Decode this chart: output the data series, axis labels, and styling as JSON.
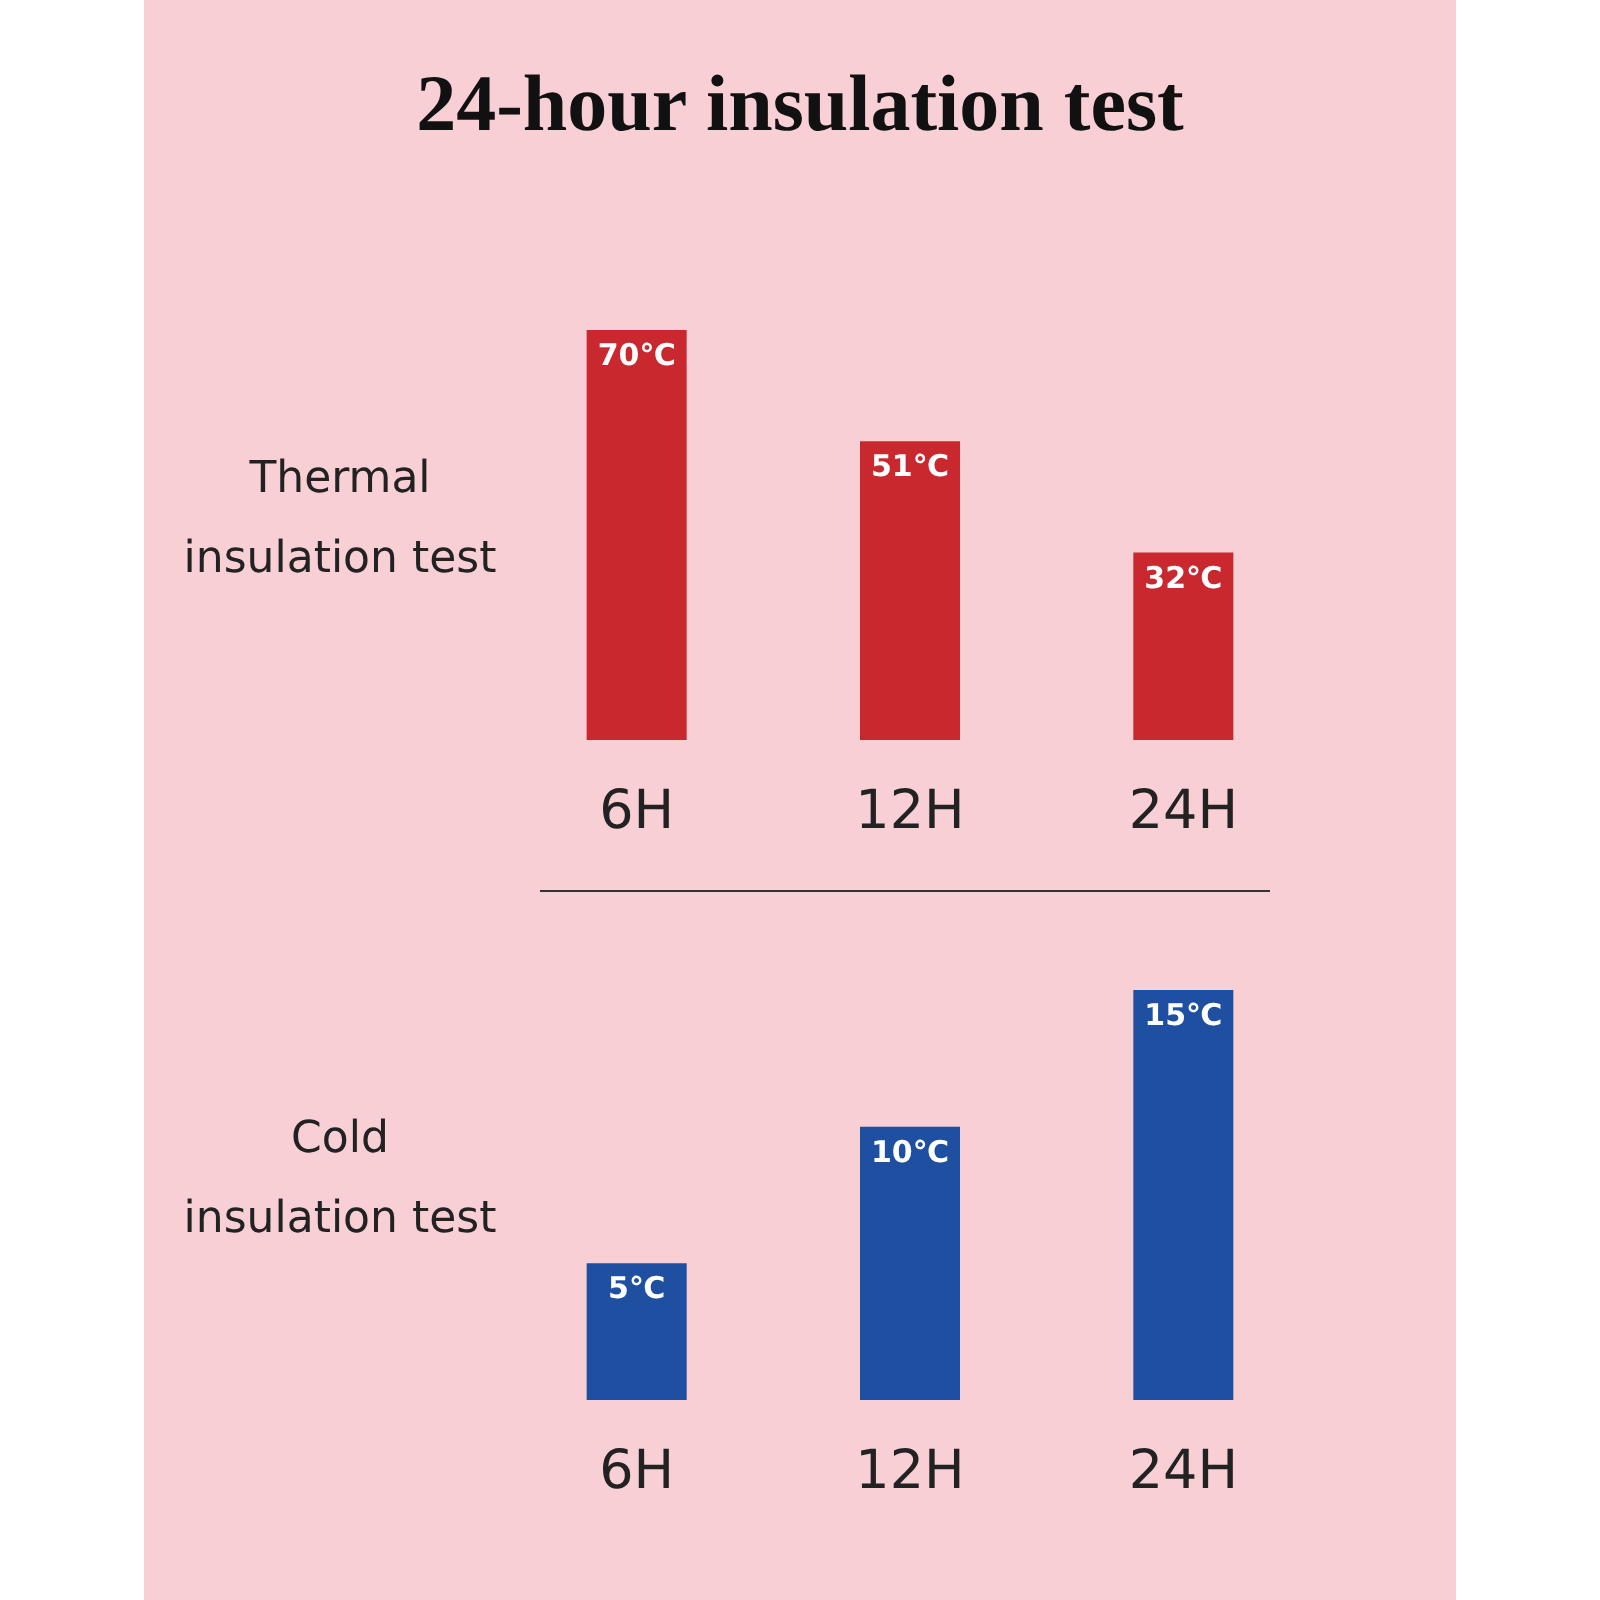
{
  "chart_data": [
    {
      "type": "bar",
      "title": "24-hour insulation test",
      "ylabel": "Thermal insulation test",
      "categories": [
        "6H",
        "12H",
        "24H"
      ],
      "series": [
        {
          "color": "#c8282e",
          "values": [
            70,
            51,
            32
          ],
          "value_labels": [
            "70℃",
            "51℃",
            "32℃"
          ]
        }
      ],
      "tick_labels": "x",
      "grid": false
    },
    {
      "type": "bar",
      "ylabel": "Cold insulation test",
      "categories": [
        "6H",
        "12H",
        "24H"
      ],
      "series": [
        {
          "color": "#1e4fa0",
          "values": [
            5,
            10,
            15
          ],
          "value_labels": [
            "5℃",
            "10℃",
            "15℃"
          ]
        }
      ],
      "tick_labels": "x",
      "grid": false
    }
  ]
}
